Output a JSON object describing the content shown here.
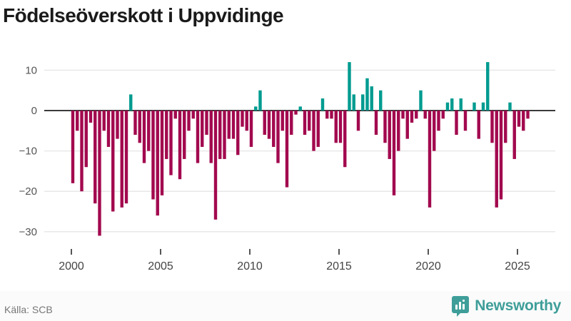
{
  "header": {
    "title": "Födelseöverskott i Uppvidinge"
  },
  "chart_data": {
    "type": "bar",
    "title": "Födelseöverskott i Uppvidinge",
    "xlabel": "",
    "ylabel": "",
    "x_unit": "quarter",
    "start": "2000 Q1",
    "end": "2025 Q3",
    "grid": "horizontal",
    "legend": "none",
    "ylim": [
      -33,
      13
    ],
    "yticks": [
      10,
      0,
      -10,
      -20,
      -30
    ],
    "xticks": [
      2000,
      2005,
      2010,
      2015,
      2020,
      2025
    ],
    "positive_color": "#009b90",
    "negative_color": "#a2094e",
    "values": [
      -18,
      -5,
      -20,
      -14,
      -3,
      -23,
      -31,
      -5,
      -9,
      -25,
      -7,
      -24,
      -23,
      4,
      -6,
      -8,
      -13,
      -10,
      -22,
      -26,
      -21,
      -12,
      -16,
      -2,
      -17,
      -12,
      -5,
      -2,
      -13,
      -9,
      -6,
      -13,
      -27,
      -12,
      -12,
      -7,
      -7,
      -11,
      -4,
      -5,
      -9,
      1,
      5,
      -6,
      -7,
      -9,
      -13,
      -5,
      -19,
      -6,
      -1,
      1,
      -6,
      -5,
      -10,
      -9,
      3,
      -2,
      -2,
      -8,
      -8,
      -14,
      12,
      4,
      -5,
      4,
      8,
      6,
      -6,
      5,
      -8,
      -12,
      -21,
      -10,
      -2,
      -7,
      -3,
      -2,
      5,
      -2,
      -24,
      -10,
      -5,
      -2,
      2,
      3,
      -6,
      3,
      -5,
      0,
      2,
      -7,
      2,
      12,
      -8,
      -24,
      -22,
      -8,
      2,
      -12,
      -4,
      -5,
      -2
    ]
  },
  "footer": {
    "source": "Källa: SCB",
    "brand": "Newsworthy",
    "brand_color": "#3f9e99",
    "icon": "newsworthy-chart-pin-icon"
  }
}
